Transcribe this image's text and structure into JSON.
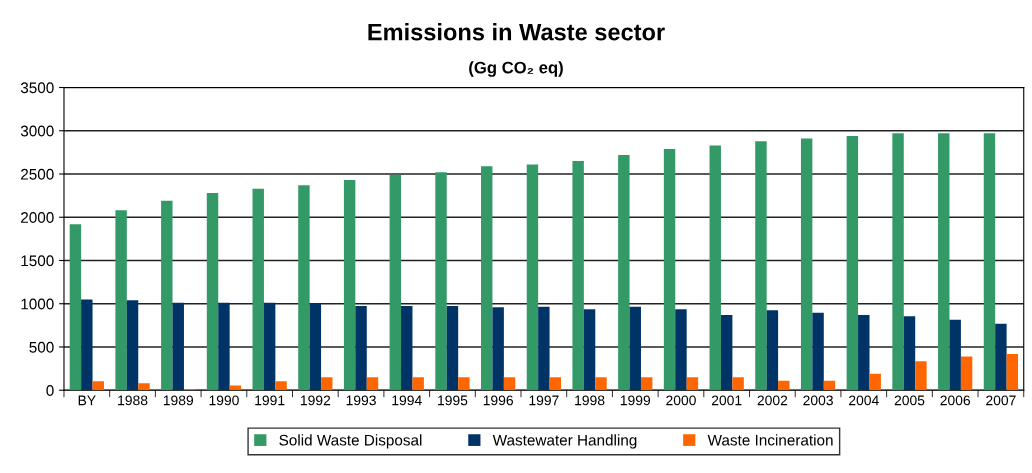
{
  "chart_data": {
    "type": "bar",
    "title": "Emissions in Waste sector",
    "subtitle": "(Gg CO₂ eq)",
    "categories": [
      "BY",
      "1988",
      "1989",
      "1990",
      "1991",
      "1992",
      "1993",
      "1994",
      "1995",
      "1996",
      "1997",
      "1998",
      "1999",
      "2000",
      "2001",
      "2002",
      "2003",
      "2004",
      "2005",
      "2006",
      "2007"
    ],
    "series": [
      {
        "name": "Solid Waste Disposal",
        "color": "#339966",
        "values": [
          1920,
          2080,
          2190,
          2280,
          2330,
          2370,
          2430,
          2490,
          2520,
          2590,
          2610,
          2650,
          2720,
          2790,
          2830,
          2880,
          2910,
          2940,
          2970,
          2970,
          2970
        ]
      },
      {
        "name": "Wastewater Handling",
        "color": "#003366",
        "values": [
          1050,
          1040,
          1010,
          1010,
          1010,
          1000,
          975,
          975,
          975,
          960,
          965,
          935,
          965,
          935,
          870,
          925,
          895,
          870,
          855,
          815,
          770
        ]
      },
      {
        "name": "Waste Incineration",
        "color": "#ff6600",
        "values": [
          105,
          80,
          15,
          55,
          105,
          150,
          150,
          150,
          150,
          150,
          150,
          150,
          150,
          150,
          150,
          110,
          110,
          190,
          335,
          390,
          420
        ]
      }
    ],
    "ylim": [
      0,
      3500
    ],
    "yticks": [
      0,
      500,
      1000,
      1500,
      2000,
      2500,
      3000,
      3500
    ],
    "grid": "y",
    "legend": "bottom"
  }
}
